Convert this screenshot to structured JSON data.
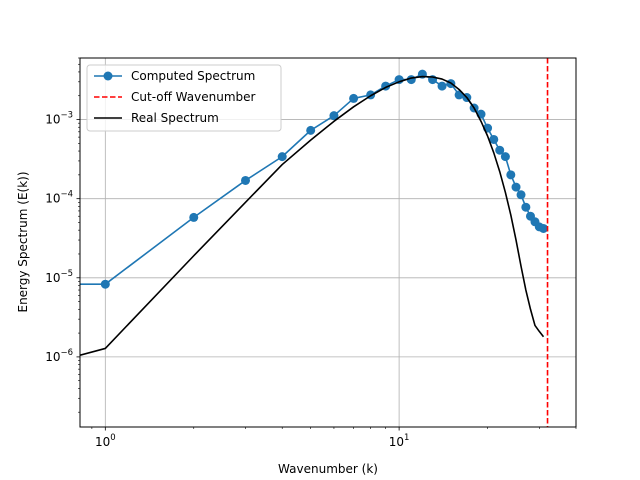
{
  "chart_data": {
    "type": "line",
    "xscale": "log",
    "yscale": "log",
    "xlabel": "Wavenumber (k)",
    "ylabel": "Energy Spectrum (E(k))",
    "xlim": [
      0.82,
      40
    ],
    "ylim": [
      1.3e-07,
      0.006
    ],
    "grid": true,
    "legend_position": "top-left",
    "x_ticks": [
      {
        "value": 1,
        "base": "10",
        "exp": "0"
      },
      {
        "value": 10,
        "base": "10",
        "exp": "1"
      }
    ],
    "y_ticks": [
      {
        "value": 1e-06,
        "base": "10",
        "exp": "−6"
      },
      {
        "value": 1e-05,
        "base": "10",
        "exp": "−5"
      },
      {
        "value": 0.0001,
        "base": "10",
        "exp": "−4"
      },
      {
        "value": 0.001,
        "base": "10",
        "exp": "−3"
      }
    ],
    "series": [
      {
        "name": "Computed Spectrum",
        "style": "line-markers",
        "color": "#1f77b4",
        "x": [
          0.82,
          1,
          2,
          3,
          4,
          5,
          6,
          7,
          8,
          9,
          10,
          11,
          12,
          13,
          14,
          15,
          16,
          17,
          18,
          19,
          20,
          21,
          22,
          23,
          24,
          25,
          26,
          27,
          28,
          29,
          30,
          31
        ],
        "y": [
          8.3e-06,
          8.3e-06,
          5.8e-05,
          0.00017,
          0.00034,
          0.00073,
          0.00112,
          0.00185,
          0.00205,
          0.00265,
          0.0032,
          0.0032,
          0.00375,
          0.0032,
          0.00265,
          0.00285,
          0.00205,
          0.0019,
          0.0014,
          0.00117,
          0.00078,
          0.00056,
          0.00041,
          0.00034,
          0.0002,
          0.00014,
          0.000112,
          7.8e-05,
          6e-05,
          5.1e-05,
          4.4e-05,
          4.2e-05
        ],
        "markers_from_index": 1
      },
      {
        "name": "Cut-off Wavenumber",
        "style": "vline-dashed",
        "color": "#ff0000",
        "x_value": 32
      },
      {
        "name": "Real Spectrum",
        "style": "line",
        "color": "#000000",
        "x": [
          0.82,
          1,
          2,
          3,
          4,
          5,
          6,
          7,
          8,
          9,
          10,
          11,
          12,
          13,
          14,
          15,
          16,
          17,
          18,
          19,
          20,
          21,
          22,
          23,
          24,
          25,
          26,
          27,
          28,
          29,
          30,
          31
        ],
        "y": [
          1.05e-06,
          1.28e-06,
          1.9e-05,
          9e-05,
          0.00027,
          0.00055,
          0.00095,
          0.00145,
          0.002,
          0.00255,
          0.003,
          0.00335,
          0.0035,
          0.00345,
          0.00325,
          0.0029,
          0.0024,
          0.0019,
          0.0014,
          0.00095,
          0.00062,
          0.00038,
          0.00022,
          0.00012,
          6.2e-05,
          3e-05,
          1.4e-05,
          7e-06,
          4e-06,
          2.5e-06,
          2.1e-06,
          1.8e-06
        ]
      }
    ]
  }
}
